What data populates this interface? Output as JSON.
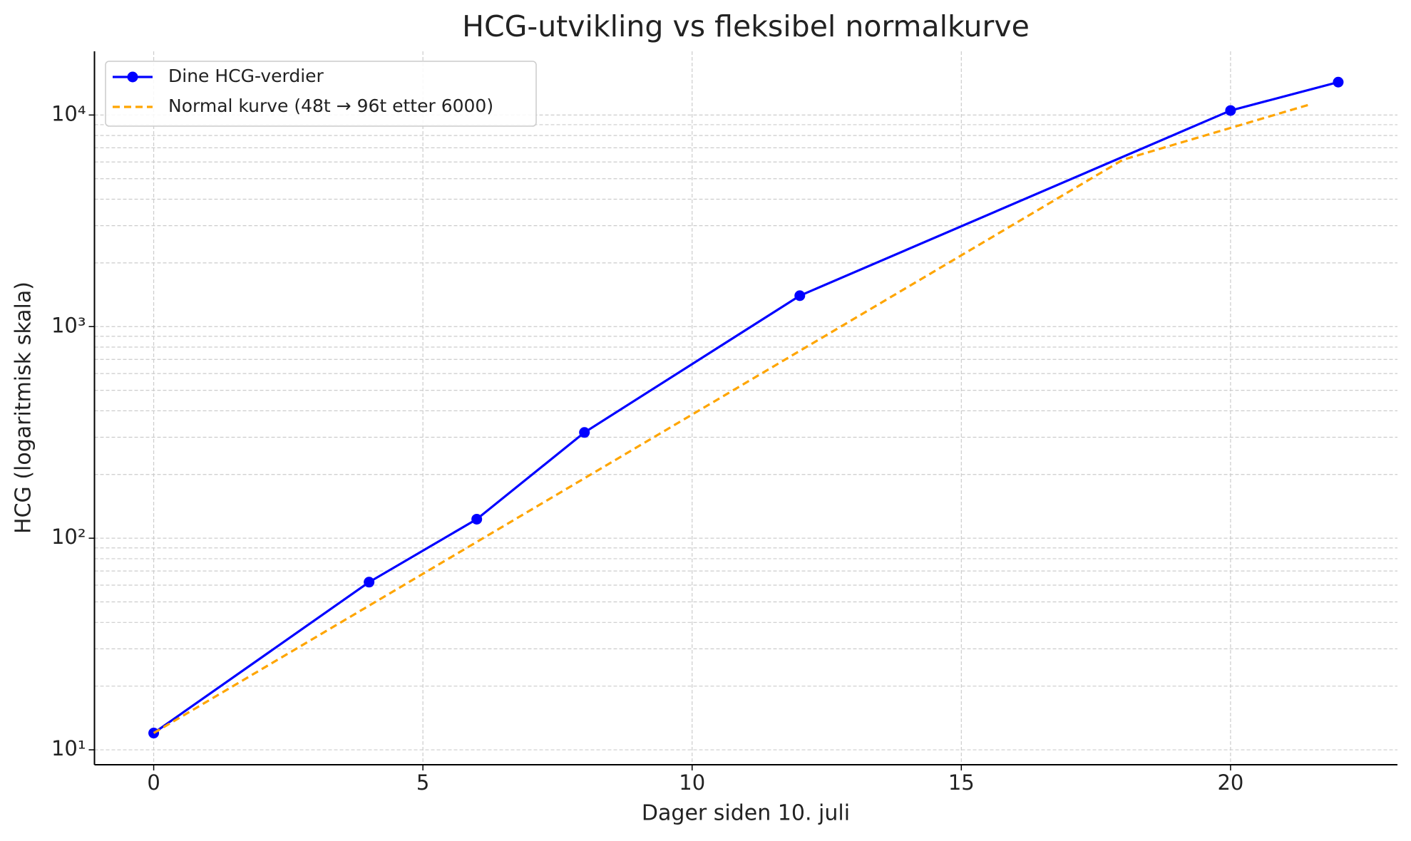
{
  "chart_data": {
    "type": "line",
    "title": "HCG-utvikling vs fleksibel normalkurve",
    "xlabel": "Dager siden 10. juli",
    "ylabel": "HCG (logaritmisk skala)",
    "yscale": "log",
    "grid": true,
    "legend": "upper left",
    "xlim": [
      -1.1,
      23.1
    ],
    "ylim": [
      8.5,
      20000
    ],
    "xticks": [
      0,
      5,
      10,
      15,
      20
    ],
    "yticks": [
      {
        "value": 10,
        "label": "10¹"
      },
      {
        "value": 100,
        "label": "10²"
      },
      {
        "value": 1000,
        "label": "10³"
      },
      {
        "value": 10000,
        "label": "10⁴"
      }
    ],
    "yminorticks": [
      20,
      30,
      40,
      50,
      60,
      70,
      80,
      90,
      200,
      300,
      400,
      500,
      600,
      700,
      800,
      900,
      2000,
      3000,
      4000,
      5000,
      6000,
      7000,
      8000,
      9000
    ],
    "series": [
      {
        "name": "Dine HCG-verdier",
        "color": "#0000ff",
        "linestyle": "solid",
        "marker": "o",
        "x": [
          0,
          4,
          6,
          8,
          12,
          20,
          22
        ],
        "values": [
          12,
          62,
          123,
          316,
          1400,
          10500,
          14300
        ]
      },
      {
        "name": "Normal kurve (48t → 96t etter 6000)",
        "color": "#ffa500",
        "linestyle": "dashed",
        "marker": "none",
        "x": [
          0,
          2,
          4,
          6,
          8,
          10,
          12,
          14,
          16,
          18,
          20,
          21.5
        ],
        "values": [
          12,
          24,
          48,
          96,
          192,
          384,
          768,
          1536,
          3072,
          6144,
          8689,
          11270
        ]
      }
    ]
  }
}
